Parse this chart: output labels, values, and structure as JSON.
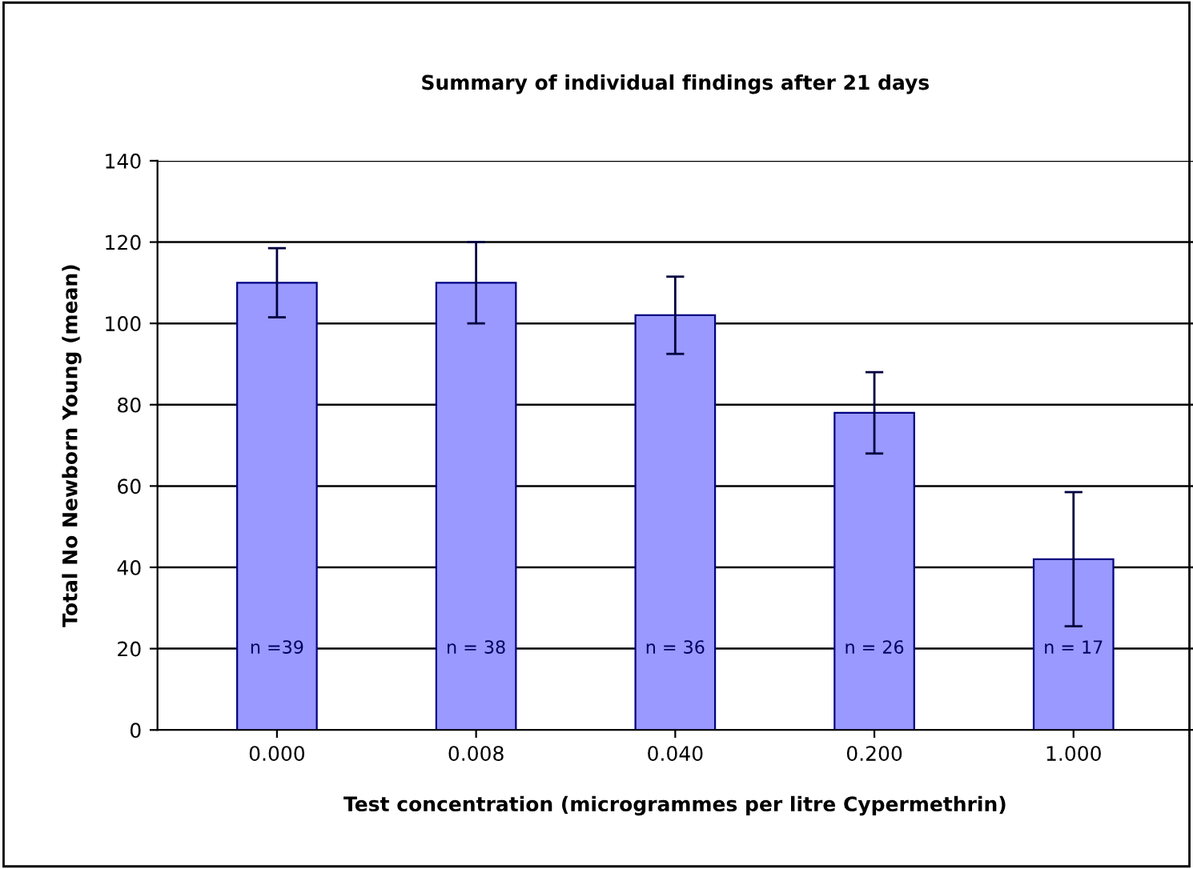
{
  "chart_data": {
    "type": "bar",
    "title": "Summary of individual findings after 21 days",
    "xlabel": "Test concentration (microgrammes per litre Cypermethrin)",
    "ylabel": "Total No Newborn Young (mean)",
    "categories": [
      "0.000",
      "0.008",
      "0.040",
      "0.200",
      "1.000"
    ],
    "values": [
      110,
      110,
      102,
      78,
      42
    ],
    "errors": [
      8.5,
      10,
      9.5,
      10,
      16.5
    ],
    "color": "#9999ff",
    "ylim": [
      0,
      140
    ],
    "yticks": [
      0,
      20,
      40,
      60,
      80,
      100,
      120,
      140
    ],
    "grid": "y",
    "legend": false,
    "annotations": [
      "n =39",
      "n = 38",
      "n = 36",
      "n = 26",
      "n = 17"
    ]
  }
}
